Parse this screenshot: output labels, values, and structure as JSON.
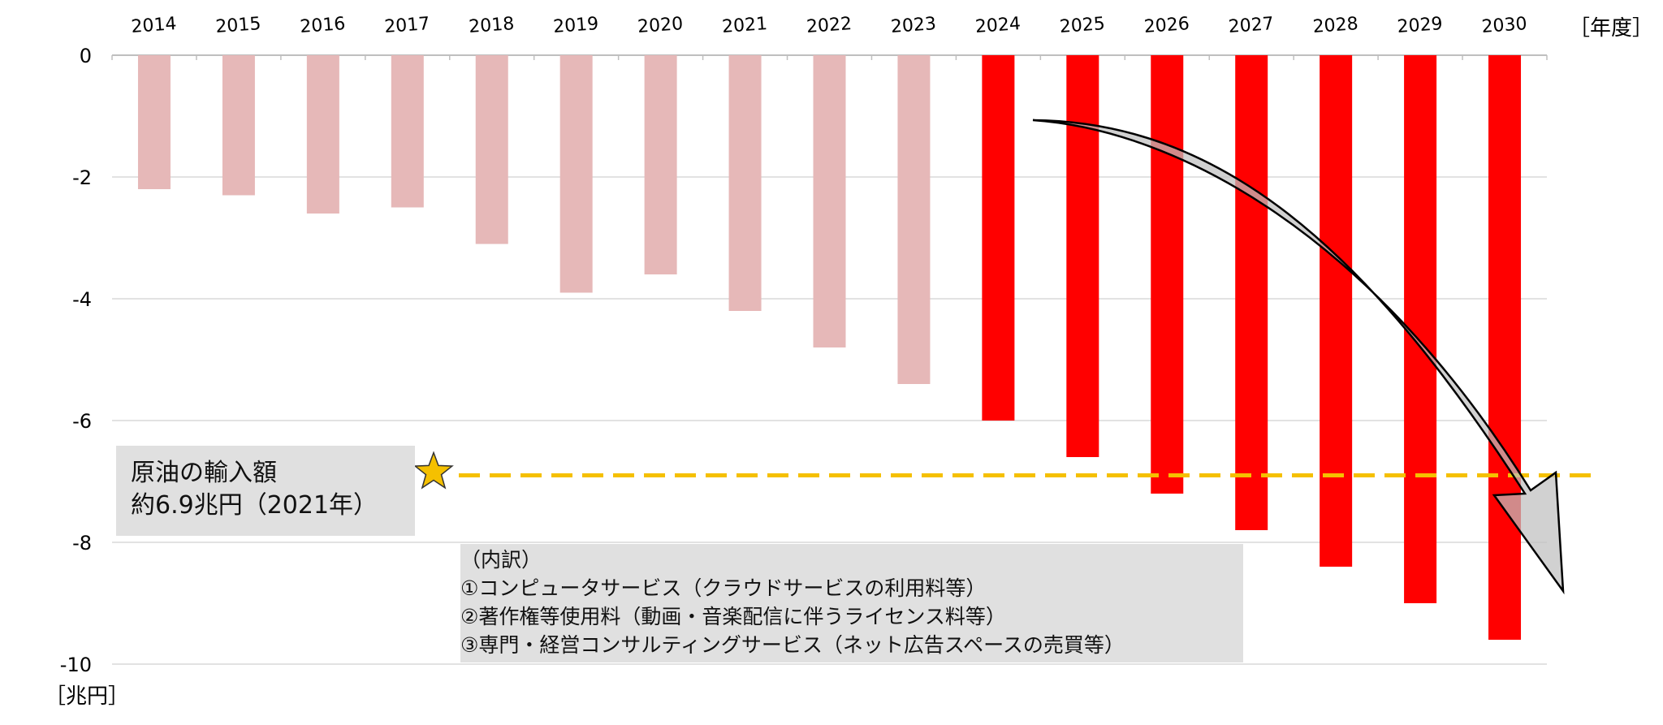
{
  "chart_data": {
    "type": "bar",
    "categories": [
      "2014",
      "2015",
      "2016",
      "2017",
      "2018",
      "2019",
      "2020",
      "2021",
      "2022",
      "2023",
      "2024",
      "2025",
      "2026",
      "2027",
      "2028",
      "2029",
      "2030"
    ],
    "values": [
      -2.2,
      -2.3,
      -2.6,
      -2.5,
      -3.1,
      -3.9,
      -3.6,
      -4.2,
      -4.8,
      -5.4,
      -6.0,
      -6.6,
      -7.2,
      -7.8,
      -8.4,
      -9.0,
      -9.6
    ],
    "ylim": [
      -10,
      0
    ],
    "yticks": [
      0,
      -2,
      -4,
      -6,
      -8,
      -10
    ],
    "ytick_labels": [
      "0",
      "-2",
      "-4",
      "-6",
      "-8",
      "-10"
    ],
    "grid": true,
    "x_axis_position": "top",
    "x_unit_label": "［年度］",
    "y_unit_label": "［兆円］",
    "colors": {
      "historical": "#e6b8b8",
      "projection": "#ff0000",
      "reference_line": "#f5c000",
      "star": "#f5c000",
      "arrow_fill": "#bfbfbf"
    },
    "reference_value": -6.9,
    "projection_start": "2024"
  },
  "annotations": {
    "crude_oil": {
      "line1": "原油の輸入額",
      "line2": "約6.9兆円（2021年）"
    },
    "breakdown": {
      "header": "（内訳）",
      "items": [
        "①コンピュータサービス（クラウドサービスの利用料等）",
        "②著作権等使用料（動画・音楽配信に伴うライセンス料等）",
        "③専門・経営コンサルティングサービス（ネット広告スペースの売買等）"
      ]
    }
  }
}
